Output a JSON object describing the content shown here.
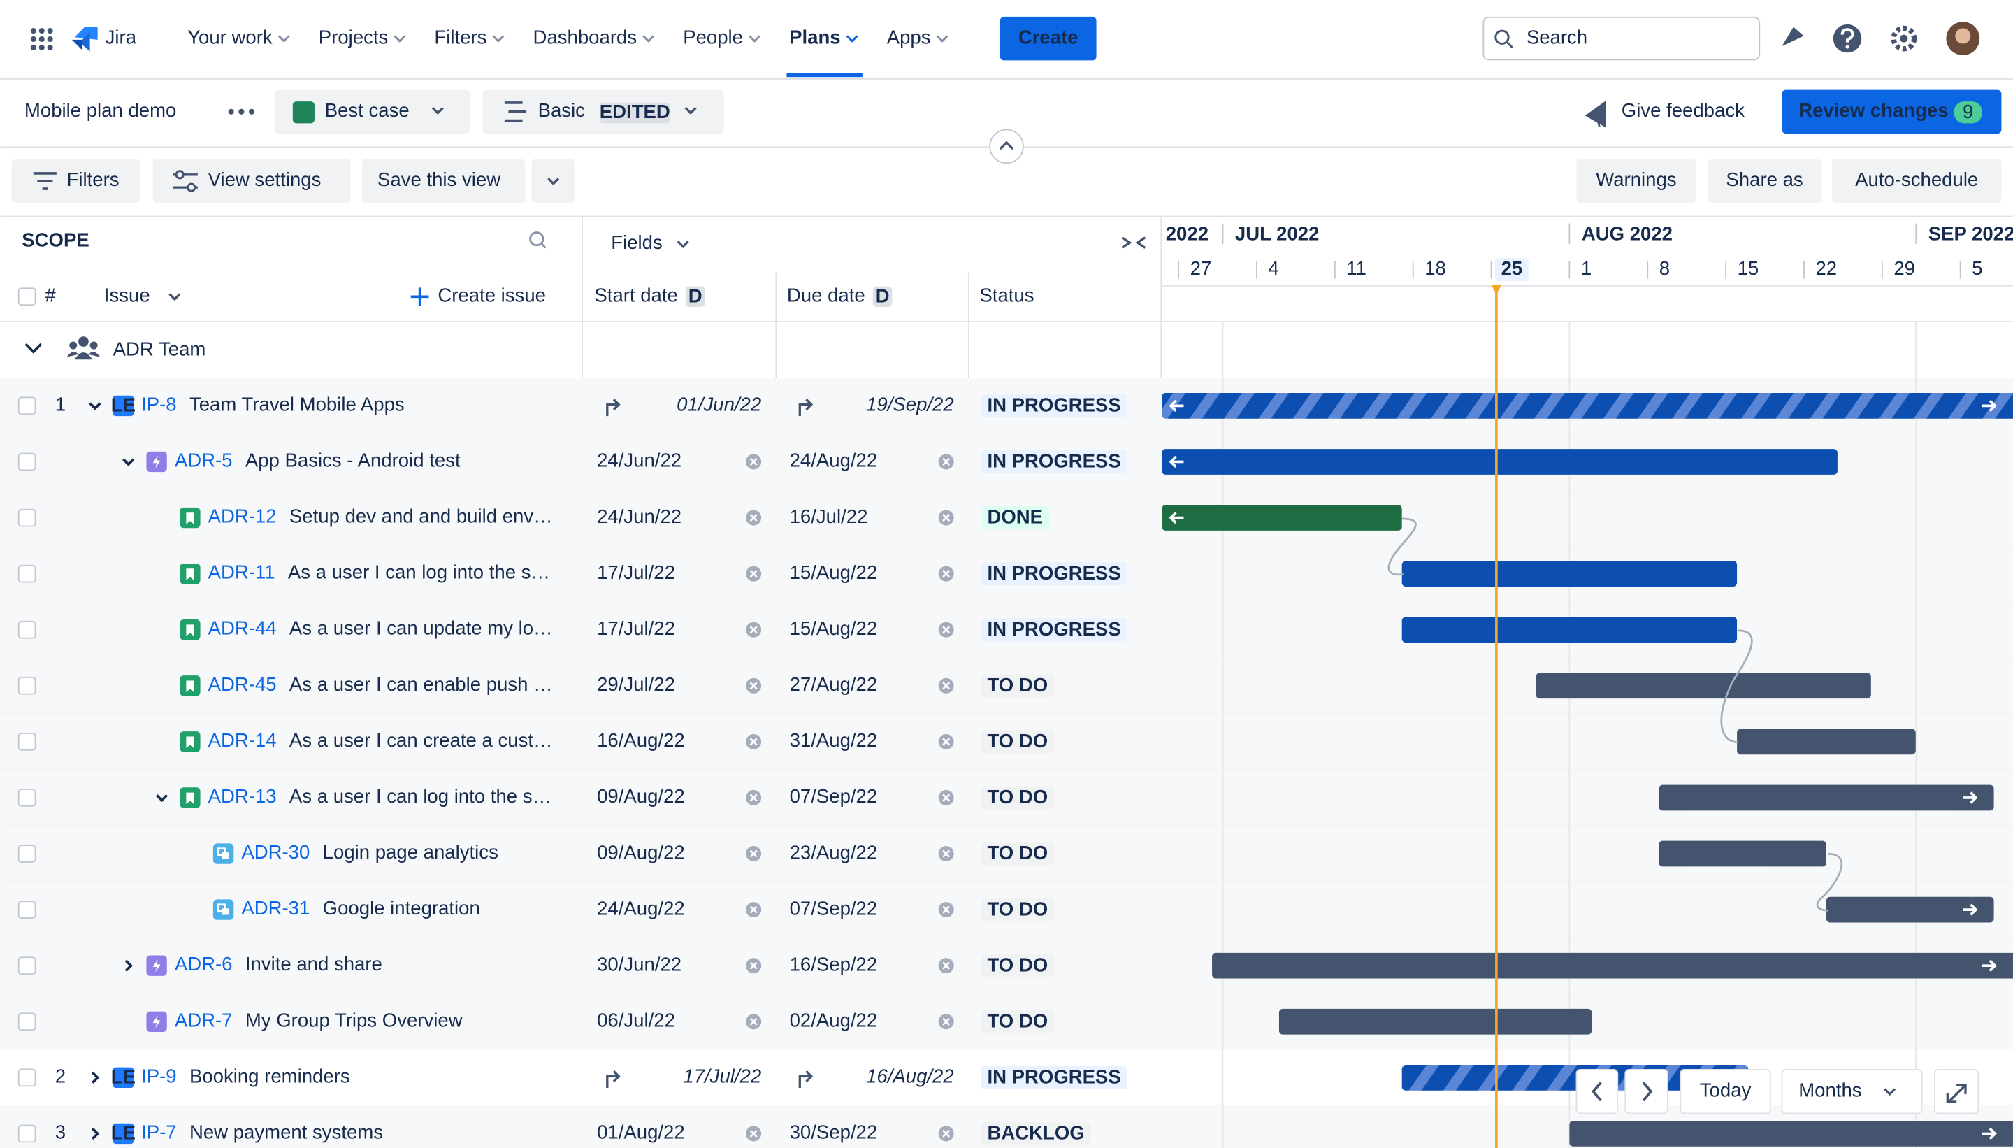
{
  "nav": {
    "logo": "Jira",
    "items": [
      "Your work",
      "Projects",
      "Filters",
      "Dashboards",
      "People",
      "Plans",
      "Apps"
    ],
    "active": "Plans",
    "create": "Create",
    "search": "Search"
  },
  "plan": {
    "title": "Mobile plan demo",
    "scenario": "Best case",
    "view": "Basic",
    "view_badge": "EDITED",
    "feedback": "Give feedback",
    "review": "Review changes",
    "review_count": "9"
  },
  "toolbar": {
    "filters": "Filters",
    "view_settings": "View settings",
    "save": "Save this view",
    "warnings": "Warnings",
    "share": "Share as",
    "auto": "Auto-schedule"
  },
  "table": {
    "scope": "SCOPE",
    "hash": "#",
    "issue": "Issue",
    "create_issue": "Create issue",
    "fields": "Fields",
    "columns": [
      "Start date",
      "Due date",
      "Status"
    ],
    "date_badge": "D",
    "group": "ADR Team",
    "rows": [
      {
        "num": "1",
        "key": "IP-8",
        "summary": "Team Travel Mobile Apps",
        "start": "01/Jun/22",
        "due": "19/Sep/22",
        "status": "IN PROGRESS",
        "level": 0,
        "icon": "LE",
        "rollup": true,
        "toggle": "open",
        "color": "#0c4fb0",
        "status_bg": "#e9f2ff",
        "status_fg": "#0055cc"
      },
      {
        "key": "ADR-5",
        "summary": "App Basics - Android test",
        "start": "24/Jun/22",
        "due": "24/Aug/22",
        "status": "IN PROGRESS",
        "level": 1,
        "icon": "epic",
        "toggle": "open",
        "color": "#0c4fb0",
        "status_bg": "#e9f2ff",
        "status_fg": "#0055cc"
      },
      {
        "key": "ADR-12",
        "summary": "Setup dev and and build env…",
        "start": "24/Jun/22",
        "due": "16/Jul/22",
        "status": "DONE",
        "level": 2,
        "icon": "story",
        "color": "#1f6e43",
        "status_bg": "#dcfff1",
        "status_fg": "#216e4e"
      },
      {
        "key": "ADR-11",
        "summary": "As a user I can log into the s…",
        "start": "17/Jul/22",
        "due": "15/Aug/22",
        "status": "IN PROGRESS",
        "level": 2,
        "icon": "story",
        "color": "#0c4fb0",
        "status_bg": "#e9f2ff",
        "status_fg": "#0055cc"
      },
      {
        "key": "ADR-44",
        "summary": "As a user I can update my lo…",
        "start": "17/Jul/22",
        "due": "15/Aug/22",
        "status": "IN PROGRESS",
        "level": 2,
        "icon": "story",
        "color": "#0c4fb0",
        "status_bg": "#e9f2ff",
        "status_fg": "#0055cc"
      },
      {
        "key": "ADR-45",
        "summary": "As a user I can enable push …",
        "start": "29/Jul/22",
        "due": "27/Aug/22",
        "status": "TO DO",
        "level": 2,
        "icon": "story",
        "color": "#44546f",
        "status_bg": "#f1f2f4",
        "status_fg": "#44546f"
      },
      {
        "key": "ADR-14",
        "summary": "As a user I can create a cust…",
        "start": "16/Aug/22",
        "due": "31/Aug/22",
        "status": "TO DO",
        "level": 2,
        "icon": "story",
        "color": "#44546f",
        "status_bg": "#f1f2f4",
        "status_fg": "#44546f"
      },
      {
        "key": "ADR-13",
        "summary": "As a user I can log into the s…",
        "start": "09/Aug/22",
        "due": "07/Sep/22",
        "status": "TO DO",
        "level": 2,
        "icon": "story",
        "toggle": "open",
        "color": "#44546f",
        "status_bg": "#f1f2f4",
        "status_fg": "#44546f"
      },
      {
        "key": "ADR-30",
        "summary": "Login page analytics",
        "start": "09/Aug/22",
        "due": "23/Aug/22",
        "status": "TO DO",
        "level": 3,
        "icon": "subtask",
        "color": "#44546f",
        "status_bg": "#f1f2f4",
        "status_fg": "#44546f"
      },
      {
        "key": "ADR-31",
        "summary": "Google integration",
        "start": "24/Aug/22",
        "due": "07/Sep/22",
        "status": "TO DO",
        "level": 3,
        "icon": "subtask",
        "color": "#44546f",
        "status_bg": "#f1f2f4",
        "status_fg": "#44546f"
      },
      {
        "key": "ADR-6",
        "summary": "Invite and share",
        "start": "30/Jun/22",
        "due": "16/Sep/22",
        "status": "TO DO",
        "level": 1,
        "icon": "epic",
        "toggle": "closed",
        "color": "#44546f",
        "status_bg": "#f1f2f4",
        "status_fg": "#44546f"
      },
      {
        "key": "ADR-7",
        "summary": "My Group Trips Overview",
        "start": "06/Jul/22",
        "due": "02/Aug/22",
        "status": "TO DO",
        "level": 1,
        "icon": "epic",
        "color": "#44546f",
        "status_bg": "#f1f2f4",
        "status_fg": "#44546f"
      },
      {
        "num": "2",
        "key": "IP-9",
        "summary": "Booking reminders",
        "start": "17/Jul/22",
        "due": "16/Aug/22",
        "status": "IN PROGRESS",
        "level": 0,
        "icon": "LE",
        "rollup": true,
        "toggle": "closed",
        "color": "#0c4fb0",
        "status_bg": "#e9f2ff",
        "status_fg": "#0055cc"
      },
      {
        "num": "3",
        "key": "IP-7",
        "summary": "New payment systems",
        "start": "01/Aug/22",
        "due": "30/Sep/22",
        "status": "BACKLOG",
        "level": 0,
        "icon": "LE",
        "toggle": "closed",
        "color": "#44546f",
        "status_bg": "#f1f2f4",
        "status_fg": "#44546f"
      }
    ]
  },
  "timeline": {
    "months": [
      "2022",
      "JUL 2022",
      "AUG 2022",
      "SEP 2022"
    ],
    "weeks": [
      "27",
      "4",
      "11",
      "18",
      "25",
      "1",
      "8",
      "15",
      "22",
      "29",
      "5"
    ],
    "today": "25",
    "today_button": "Today",
    "scale": "Months"
  }
}
